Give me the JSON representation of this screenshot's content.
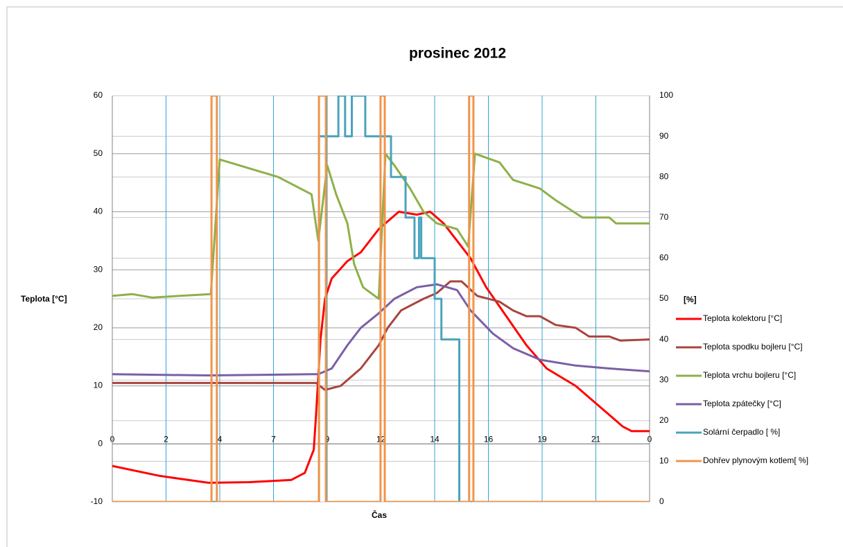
{
  "chart_data": {
    "type": "line",
    "title": "prosinec 2012",
    "x_label": "Čas",
    "y_label": "Teplota [°C]",
    "y2_label": "[%]",
    "xlim": [
      0,
      24
    ],
    "xticks": [
      0,
      {
        "value": 2.4,
        "label": "2"
      },
      {
        "value": 4.8,
        "label": "4"
      },
      {
        "value": 7.2,
        "label": "7"
      },
      {
        "value": 9.6,
        "label": "9"
      },
      {
        "value": 12,
        "label": "12"
      },
      {
        "value": 14.4,
        "label": "14"
      },
      {
        "value": 16.8,
        "label": "16"
      },
      {
        "value": 19.2,
        "label": "19"
      },
      {
        "value": 21.6,
        "label": "21"
      },
      {
        "value": 24,
        "label": "0"
      }
    ],
    "ylim": [
      -10,
      60
    ],
    "yticks": [
      -10,
      0,
      10,
      20,
      30,
      40,
      50,
      60
    ],
    "y2lim": [
      0,
      100
    ],
    "y2ticks": [
      0,
      10,
      20,
      30,
      40,
      50,
      60,
      70,
      80,
      90,
      100
    ],
    "grid": true,
    "legend": "right",
    "series": [
      {
        "name": "Teplota kolektoru [°C]",
        "color": "#ff0000",
        "x": [
          0,
          2.1,
          3.0,
          4.3,
          6.1,
          8.0,
          8.6,
          9.0,
          9.1,
          9.3,
          9.5,
          9.8,
          10.5,
          11.1,
          11.9,
          12.8,
          13.6,
          14.2,
          14.8,
          15.4,
          16.0,
          16.7,
          17.6,
          18.5,
          19.4,
          20.7,
          21.6,
          22.8,
          23.2,
          24
        ],
        "values": [
          -3.8,
          -5.5,
          -6,
          -6.7,
          -6.6,
          -6.2,
          -5,
          -1,
          5,
          18,
          25,
          28.5,
          31.5,
          33,
          37,
          40,
          39.5,
          40,
          38,
          35,
          32,
          27,
          22,
          17,
          13,
          10,
          7,
          3,
          2.2,
          2.2
        ]
      },
      {
        "name": "Teplota spodku bojleru [°C]",
        "color": "#a9443e",
        "x": [
          0,
          9.1,
          9.5,
          10.2,
          11.1,
          11.9,
          12.3,
          12.9,
          13.9,
          14.5,
          15.1,
          15.6,
          16.3,
          17.3,
          17.9,
          18.5,
          19.1,
          19.8,
          20.7,
          21.3,
          22.2,
          22.7,
          24
        ],
        "values": [
          10.5,
          10.5,
          9.3,
          10,
          13,
          17,
          20,
          23,
          25,
          26,
          28,
          28,
          25.5,
          24.5,
          23,
          22,
          22,
          20.5,
          20,
          18.5,
          18.5,
          17.8,
          18
        ]
      },
      {
        "name": "Teplota vrchu bojleru [°C]",
        "color": "#8db04a",
        "x": [
          0,
          0.9,
          1.8,
          3.0,
          4.4,
          4.8,
          7.4,
          8.9,
          9.2,
          9.6,
          10.0,
          10.5,
          10.8,
          11.2,
          11.9,
          12.2,
          12.6,
          13.3,
          13.9,
          14.5,
          15.4,
          15.9,
          16.2,
          17.3,
          17.9,
          19.1,
          19.8,
          20.4,
          21.0,
          22.2,
          22.5,
          24
        ],
        "values": [
          25.5,
          25.8,
          25.2,
          25.5,
          25.8,
          49,
          46,
          43,
          35,
          48,
          43,
          38,
          31,
          27,
          25,
          50,
          48,
          44,
          40,
          38,
          37,
          34,
          50,
          48.5,
          45.5,
          44,
          42,
          40.5,
          39,
          39,
          38,
          38
        ]
      },
      {
        "name": "Teplota zpátečky [°C]",
        "color": "#7b5ea6",
        "x": [
          0,
          4.3,
          8.9,
          9.2,
          9.8,
          10.5,
          11.1,
          11.9,
          12.6,
          13.6,
          14.5,
          15.4,
          16.0,
          17.0,
          17.9,
          19.1,
          20.7,
          22.2,
          24
        ],
        "values": [
          12,
          11.8,
          12,
          12,
          13,
          17,
          20,
          22.5,
          25,
          27,
          27.5,
          26.5,
          23,
          19,
          16.5,
          14.5,
          13.5,
          13,
          12.5
        ]
      },
      {
        "name": "Solární čerpadlo [ %]",
        "color": "#4aa3bd",
        "axis": "y2",
        "x": [
          0,
          9.23,
          9.23,
          10.1,
          10.1,
          10.4,
          10.4,
          10.7,
          10.7,
          11.3,
          11.3,
          12.45,
          12.45,
          13.1,
          13.1,
          13.5,
          13.5,
          13.7,
          13.7,
          13.8,
          13.8,
          14.4,
          14.4,
          14.7,
          14.7,
          15.5,
          15.5,
          24
        ],
        "values": [
          0,
          0,
          90,
          90,
          100,
          100,
          90,
          90,
          100,
          100,
          90,
          90,
          80,
          80,
          70,
          70,
          60,
          60,
          70,
          70,
          60,
          60,
          50,
          50,
          40,
          40,
          0,
          0
        ]
      },
      {
        "name": "Dohřev plynovým kotlem[ %]",
        "color": "#f0944a",
        "axis": "y2",
        "x": [
          0,
          4.43,
          4.43,
          4.67,
          4.67,
          9.23,
          9.23,
          9.54,
          9.54,
          11.98,
          11.98,
          12.17,
          12.17,
          15.94,
          15.94,
          16.13,
          16.13,
          24
        ],
        "values": [
          0,
          0,
          100,
          100,
          0,
          0,
          100,
          100,
          0,
          0,
          100,
          100,
          0,
          0,
          100,
          100,
          0,
          0
        ]
      }
    ]
  }
}
